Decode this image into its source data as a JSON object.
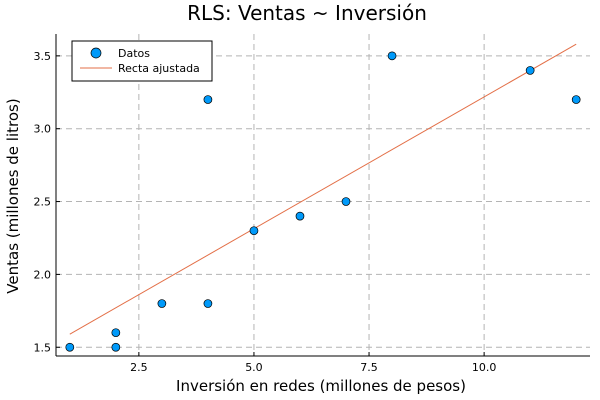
{
  "chart_data": {
    "type": "scatter",
    "title": "RLS: Ventas ~ Inversión",
    "xlabel": "Inversión en redes (millones de pesos)",
    "ylabel": "Ventas (millones de litros)",
    "xlim": [
      0.7,
      12.3
    ],
    "ylim": [
      1.44,
      3.65
    ],
    "xticks": [
      2.5,
      5.0,
      7.5,
      10.0
    ],
    "xtick_labels": [
      "2.5",
      "5.0",
      "7.5",
      "10.0"
    ],
    "yticks": [
      1.5,
      2.0,
      2.5,
      3.0,
      3.5
    ],
    "ytick_labels": [
      "1.5",
      "2.0",
      "2.5",
      "3.0",
      "3.5"
    ],
    "grid": true,
    "legend_position": "top-left",
    "series": [
      {
        "name": "Datos",
        "kind": "scatter",
        "color": "#009AFA",
        "points": [
          [
            1,
            1.5
          ],
          [
            2,
            1.5
          ],
          [
            2,
            1.6
          ],
          [
            3,
            1.8
          ],
          [
            4,
            1.8
          ],
          [
            4,
            3.2
          ],
          [
            5,
            2.3
          ],
          [
            6,
            2.4
          ],
          [
            7,
            2.5
          ],
          [
            8,
            3.5
          ],
          [
            11,
            3.4
          ],
          [
            12,
            3.2
          ]
        ]
      },
      {
        "name": "Recta ajustada",
        "kind": "line",
        "color": "#E36F47",
        "points": [
          [
            1,
            1.59
          ],
          [
            12,
            3.58
          ]
        ]
      }
    ]
  }
}
